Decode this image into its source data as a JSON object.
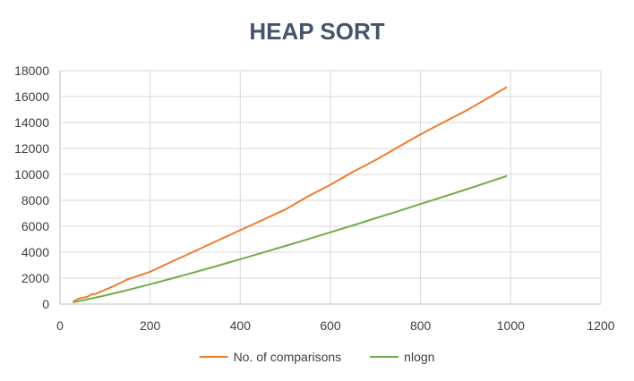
{
  "chart_data": {
    "type": "line",
    "title": "HEAP SORT",
    "xlabel": "",
    "ylabel": "",
    "xlim": [
      0,
      1200
    ],
    "ylim": [
      0,
      18000
    ],
    "x_ticks": [
      0,
      200,
      400,
      600,
      800,
      1000,
      1200
    ],
    "y_ticks": [
      0,
      2000,
      4000,
      6000,
      8000,
      10000,
      12000,
      14000,
      16000,
      18000
    ],
    "grid": true,
    "legend_position": "bottom",
    "series": [
      {
        "name": "No. of comparisons",
        "color": "#ed7d31",
        "x": [
          30,
          40,
          50,
          60,
          70,
          80,
          100,
          120,
          150,
          200,
          250,
          300,
          350,
          400,
          450,
          500,
          550,
          600,
          650,
          700,
          750,
          800,
          850,
          900,
          950,
          990
        ],
        "y": [
          200,
          400,
          500,
          550,
          750,
          800,
          1100,
          1400,
          1900,
          2500,
          3300,
          4100,
          4900,
          5700,
          6500,
          7300,
          8300,
          9200,
          10200,
          11100,
          12100,
          13100,
          14000,
          14900,
          15900,
          16700
        ]
      },
      {
        "name": "nlogn",
        "color": "#70ad47",
        "x": [
          30,
          50,
          100,
          150,
          200,
          250,
          300,
          350,
          400,
          450,
          500,
          550,
          600,
          650,
          700,
          750,
          800,
          850,
          900,
          950,
          990
        ],
        "y": [
          150,
          280,
          660,
          1080,
          1530,
          1990,
          2470,
          2960,
          3460,
          3970,
          4480,
          5010,
          5540,
          6070,
          6620,
          7160,
          7720,
          8270,
          8830,
          9400,
          9860
        ]
      }
    ]
  }
}
